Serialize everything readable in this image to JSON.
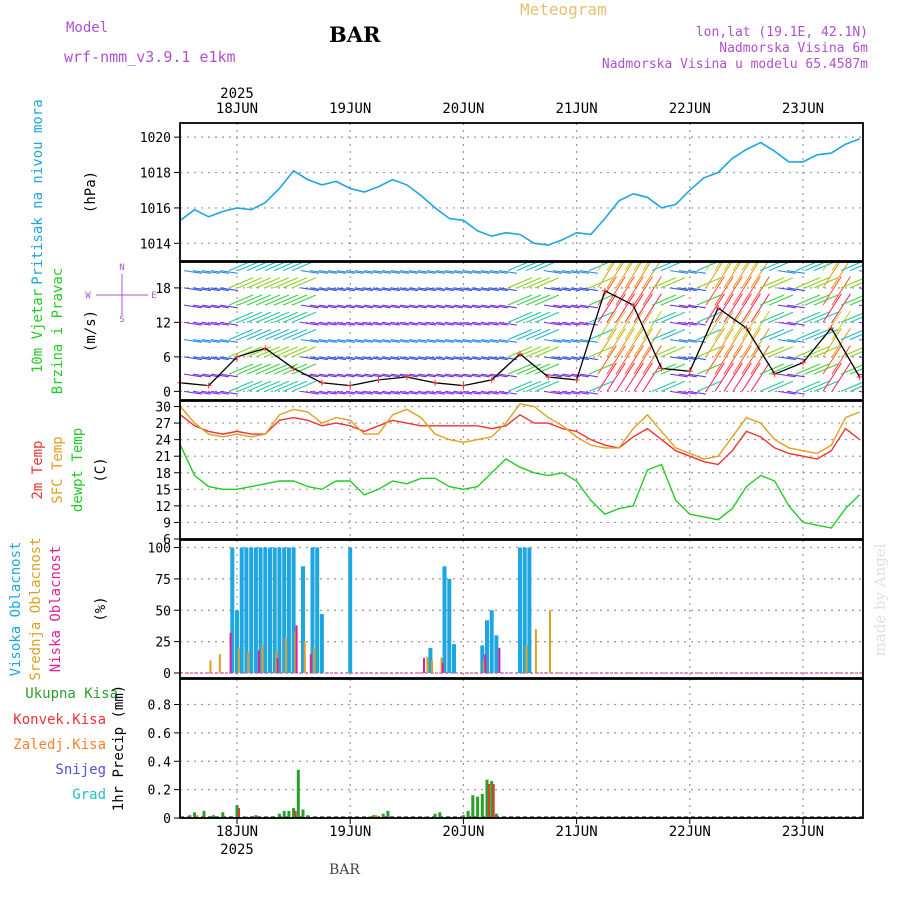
{
  "header": {
    "model_label": "Model",
    "model_name": "wrf-nmm_v3.9.1 e1km",
    "station": "BAR",
    "chart_title": "Meteogram",
    "coords": "lon,lat (19.1E, 42.1N)",
    "elevation": "Nadmorska Visina 6m",
    "model_elevation": "Nadmorska Visina u modelu 65.4587m"
  },
  "footer": {
    "station": "BAR",
    "watermark": "made by Angel"
  },
  "colors": {
    "pressure": "#1ea6e0",
    "wind_label": "#22cc22",
    "t2m": "#ee3333",
    "tsfc": "#e0a020",
    "dewpt": "#22cc22",
    "high_cloud": "#1ea6e0",
    "mid_cloud": "#e0a020",
    "low_cloud": "#e0209a",
    "total_rain": "#2aa02a",
    "conv_rain": "#ee3333",
    "freezing_rain": "#ff8030",
    "snow": "#5050e0",
    "hail": "#20c0c0",
    "header_purple": "#b050d0",
    "title_gold": "#e8c070"
  },
  "time_axis": {
    "labels": [
      "18JUN",
      "19JUN",
      "20JUN",
      "21JUN",
      "22JUN",
      "23JUN"
    ],
    "year": "2025",
    "start": "2025-06-17T12:00",
    "end": "2025-06-23T12:00"
  },
  "chart_data": [
    {
      "type": "line",
      "panel": "pressure",
      "ylabel_title": "Pritisak na nivou mora",
      "ylabel_unit": "(hPa)",
      "ylim": [
        1013,
        1020.8
      ],
      "yticks": [
        "1014",
        "1016",
        "1018",
        "1020"
      ],
      "x": [
        "2025-06-17T12:00",
        "2025-06-17T15:00",
        "2025-06-17T18:00",
        "2025-06-17T21:00",
        "2025-06-18T00:00",
        "2025-06-18T03:00",
        "2025-06-18T06:00",
        "2025-06-18T09:00",
        "2025-06-18T12:00",
        "2025-06-18T15:00",
        "2025-06-18T18:00",
        "2025-06-18T21:00",
        "2025-06-19T00:00",
        "2025-06-19T03:00",
        "2025-06-19T06:00",
        "2025-06-19T09:00",
        "2025-06-19T12:00",
        "2025-06-19T15:00",
        "2025-06-19T18:00",
        "2025-06-19T21:00",
        "2025-06-20T00:00",
        "2025-06-20T03:00",
        "2025-06-20T06:00",
        "2025-06-20T09:00",
        "2025-06-20T12:00",
        "2025-06-20T15:00",
        "2025-06-20T18:00",
        "2025-06-20T21:00",
        "2025-06-21T00:00",
        "2025-06-21T03:00",
        "2025-06-21T06:00",
        "2025-06-21T09:00",
        "2025-06-21T12:00",
        "2025-06-21T15:00",
        "2025-06-21T18:00",
        "2025-06-21T21:00",
        "2025-06-22T00:00",
        "2025-06-22T03:00",
        "2025-06-22T06:00",
        "2025-06-22T09:00",
        "2025-06-22T12:00",
        "2025-06-22T15:00",
        "2025-06-22T18:00",
        "2025-06-22T21:00",
        "2025-06-23T00:00",
        "2025-06-23T03:00",
        "2025-06-23T06:00",
        "2025-06-23T09:00",
        "2025-06-23T12:00"
      ],
      "series": [
        {
          "key": "pressure",
          "values": [
            1015.3,
            1015.9,
            1015.5,
            1015.8,
            1016.0,
            1015.9,
            1016.3,
            1017.1,
            1018.1,
            1017.6,
            1017.3,
            1017.5,
            1017.1,
            1016.9,
            1017.2,
            1017.6,
            1017.3,
            1016.7,
            1016.0,
            1015.4,
            1015.3,
            1014.7,
            1014.4,
            1014.6,
            1014.5,
            1014.0,
            1013.9,
            1014.2,
            1014.6,
            1014.5,
            1015.4,
            1016.4,
            1016.8,
            1016.6,
            1016.0,
            1016.2,
            1017.0,
            1017.7,
            1018.0,
            1018.8,
            1019.3,
            1019.7,
            1019.2,
            1018.6,
            1018.6,
            1019.0,
            1019.1,
            1019.6,
            1019.9
          ]
        }
      ]
    },
    {
      "type": "line",
      "panel": "wind",
      "ylabel_title": "10m Vjetar",
      "ylabel_title2": "Brzina i Pravac",
      "ylabel_unit": "(m/s)",
      "compass": [
        "N",
        "W",
        "E",
        "S"
      ],
      "ylim": [
        -1.5,
        22.5
      ],
      "yticks": [
        "0",
        "6",
        "12",
        "18"
      ],
      "x": [
        "2025-06-17T12:00",
        "2025-06-17T18:00",
        "2025-06-18T00:00",
        "2025-06-18T06:00",
        "2025-06-18T12:00",
        "2025-06-18T18:00",
        "2025-06-19T00:00",
        "2025-06-19T06:00",
        "2025-06-19T12:00",
        "2025-06-19T18:00",
        "2025-06-20T00:00",
        "2025-06-20T06:00",
        "2025-06-20T12:00",
        "2025-06-20T18:00",
        "2025-06-21T00:00",
        "2025-06-21T06:00",
        "2025-06-21T12:00",
        "2025-06-21T18:00",
        "2025-06-22T00:00",
        "2025-06-22T06:00",
        "2025-06-22T12:00",
        "2025-06-22T18:00",
        "2025-06-23T00:00",
        "2025-06-23T06:00",
        "2025-06-23T12:00"
      ],
      "series": [
        {
          "key": "wind_speed",
          "values": [
            1.5,
            1.0,
            6.0,
            7.5,
            4.0,
            1.5,
            1.0,
            2.0,
            2.5,
            1.5,
            1.0,
            2.0,
            6.5,
            2.5,
            2.0,
            17.5,
            15.0,
            4.0,
            3.5,
            14.5,
            11.0,
            3.0,
            5.0,
            11.0,
            2.5
          ]
        }
      ]
    },
    {
      "type": "line",
      "panel": "temperature",
      "ylabel_title": "2m Temp",
      "ylabel_title2": "SFC Temp",
      "ylabel_title3": "dewpt Temp",
      "ylabel_unit": "(C)",
      "ylim": [
        6,
        31
      ],
      "yticks": [
        "6",
        "9",
        "12",
        "15",
        "18",
        "21",
        "24",
        "27",
        "30"
      ],
      "x": [
        "2025-06-17T12:00",
        "2025-06-17T15:00",
        "2025-06-17T18:00",
        "2025-06-17T21:00",
        "2025-06-18T00:00",
        "2025-06-18T03:00",
        "2025-06-18T06:00",
        "2025-06-18T09:00",
        "2025-06-18T12:00",
        "2025-06-18T15:00",
        "2025-06-18T18:00",
        "2025-06-18T21:00",
        "2025-06-19T00:00",
        "2025-06-19T03:00",
        "2025-06-19T06:00",
        "2025-06-19T09:00",
        "2025-06-19T12:00",
        "2025-06-19T15:00",
        "2025-06-19T18:00",
        "2025-06-19T21:00",
        "2025-06-20T00:00",
        "2025-06-20T03:00",
        "2025-06-20T06:00",
        "2025-06-20T09:00",
        "2025-06-20T12:00",
        "2025-06-20T15:00",
        "2025-06-20T18:00",
        "2025-06-20T21:00",
        "2025-06-21T00:00",
        "2025-06-21T03:00",
        "2025-06-21T06:00",
        "2025-06-21T09:00",
        "2025-06-21T12:00",
        "2025-06-21T15:00",
        "2025-06-21T18:00",
        "2025-06-21T21:00",
        "2025-06-22T00:00",
        "2025-06-22T03:00",
        "2025-06-22T06:00",
        "2025-06-22T09:00",
        "2025-06-22T12:00",
        "2025-06-22T15:00",
        "2025-06-22T18:00",
        "2025-06-22T21:00",
        "2025-06-23T00:00",
        "2025-06-23T03:00",
        "2025-06-23T06:00",
        "2025-06-23T09:00",
        "2025-06-23T12:00"
      ],
      "series": [
        {
          "key": "t2m",
          "values": [
            28.5,
            26.5,
            25.5,
            25.0,
            25.5,
            25.0,
            25.0,
            27.5,
            28.0,
            27.5,
            26.5,
            27.0,
            26.5,
            25.5,
            26.5,
            27.5,
            27.0,
            26.5,
            26.5,
            26.5,
            26.5,
            26.5,
            26.0,
            26.5,
            28.5,
            27.0,
            27.0,
            26.0,
            25.5,
            24.0,
            23.0,
            22.5,
            24.5,
            26.0,
            24.0,
            22.0,
            21.0,
            20.0,
            19.5,
            22.0,
            25.5,
            24.5,
            22.5,
            21.5,
            21.0,
            20.5,
            22.0,
            26.0,
            24.0
          ]
        },
        {
          "key": "tsfc",
          "values": [
            30.0,
            27.0,
            25.0,
            24.5,
            25.0,
            24.5,
            25.0,
            28.5,
            29.5,
            29.0,
            27.0,
            28.0,
            27.5,
            25.0,
            25.0,
            28.5,
            29.5,
            28.0,
            25.0,
            24.0,
            23.5,
            24.0,
            24.5,
            27.0,
            30.5,
            30.0,
            28.0,
            26.5,
            24.5,
            23.0,
            22.5,
            22.5,
            26.0,
            28.5,
            25.5,
            22.5,
            21.5,
            20.5,
            21.0,
            24.5,
            28.0,
            27.0,
            24.0,
            22.5,
            22.0,
            21.5,
            23.0,
            28.0,
            29.0
          ]
        },
        {
          "key": "dewpt",
          "values": [
            23.0,
            17.5,
            15.5,
            15.0,
            15.0,
            15.5,
            16.0,
            16.5,
            16.5,
            15.5,
            15.0,
            16.5,
            16.5,
            14.0,
            15.0,
            16.5,
            16.0,
            17.0,
            17.0,
            15.5,
            15.0,
            15.5,
            18.0,
            20.5,
            19.0,
            18.0,
            17.5,
            18.0,
            16.5,
            13.0,
            10.5,
            11.5,
            12.0,
            18.5,
            19.5,
            13.0,
            10.5,
            10.0,
            9.5,
            11.5,
            15.5,
            17.5,
            16.5,
            12.0,
            9.0,
            8.5,
            8.0,
            11.5,
            14.0
          ]
        }
      ]
    },
    {
      "type": "bar",
      "panel": "clouds",
      "ylabel_title": "Visoka Oblacnost",
      "ylabel_title2": "Srednja Oblacnost",
      "ylabel_title3": "Niska Oblacnost",
      "ylabel_unit": "(%)",
      "ylim": [
        -4,
        106
      ],
      "yticks": [
        "0",
        "25",
        "50",
        "75",
        "100"
      ],
      "series": [
        {
          "key": "high",
          "points": [
            [
              "2025-06-17T23:00",
              100
            ],
            [
              "2025-06-18T00:00",
              50
            ],
            [
              "2025-06-18T01:00",
              100
            ],
            [
              "2025-06-18T02:00",
              100
            ],
            [
              "2025-06-18T03:00",
              100
            ],
            [
              "2025-06-18T04:00",
              100
            ],
            [
              "2025-06-18T05:00",
              100
            ],
            [
              "2025-06-18T06:00",
              100
            ],
            [
              "2025-06-18T07:00",
              100
            ],
            [
              "2025-06-18T08:00",
              100
            ],
            [
              "2025-06-18T09:00",
              100
            ],
            [
              "2025-06-18T10:00",
              100
            ],
            [
              "2025-06-18T11:00",
              100
            ],
            [
              "2025-06-18T12:00",
              100
            ],
            [
              "2025-06-18T14:00",
              85
            ],
            [
              "2025-06-18T16:00",
              100
            ],
            [
              "2025-06-18T17:00",
              100
            ],
            [
              "2025-06-18T18:00",
              47
            ],
            [
              "2025-06-19T00:00",
              100
            ],
            [
              "2025-06-19T17:00",
              20
            ],
            [
              "2025-06-19T20:00",
              85
            ],
            [
              "2025-06-19T21:00",
              75
            ],
            [
              "2025-06-19T22:00",
              23
            ],
            [
              "2025-06-20T04:00",
              22
            ],
            [
              "2025-06-20T05:00",
              42
            ],
            [
              "2025-06-20T06:00",
              50
            ],
            [
              "2025-06-20T07:00",
              30
            ],
            [
              "2025-06-20T12:00",
              100
            ],
            [
              "2025-06-20T13:00",
              100
            ],
            [
              "2025-06-20T14:00",
              100
            ]
          ]
        },
        {
          "key": "mid",
          "points": [
            [
              "2025-06-17T19:00",
              10
            ],
            [
              "2025-06-17T21:00",
              15
            ],
            [
              "2025-06-18T01:00",
              20
            ],
            [
              "2025-06-18T03:00",
              17
            ],
            [
              "2025-06-18T06:00",
              22
            ],
            [
              "2025-06-18T09:00",
              18
            ],
            [
              "2025-06-18T11:00",
              28
            ],
            [
              "2025-06-18T13:00",
              33
            ],
            [
              "2025-06-18T15:00",
              25
            ],
            [
              "2025-06-18T17:00",
              20
            ],
            [
              "2025-06-19T17:00",
              13
            ],
            [
              "2025-06-19T18:00",
              10
            ],
            [
              "2025-06-19T20:00",
              12
            ],
            [
              "2025-06-20T05:00",
              10
            ],
            [
              "2025-06-20T14:00",
              22
            ],
            [
              "2025-06-20T16:00",
              35
            ],
            [
              "2025-06-20T19:00",
              50
            ]
          ]
        },
        {
          "key": "low",
          "points": [
            [
              "2025-06-17T22:00",
              32
            ],
            [
              "2025-06-18T04:00",
              18
            ],
            [
              "2025-06-18T08:00",
              12
            ],
            [
              "2025-06-18T12:00",
              38
            ],
            [
              "2025-06-18T15:00",
              15
            ],
            [
              "2025-06-19T15:00",
              12
            ],
            [
              "2025-06-19T19:00",
              8
            ],
            [
              "2025-06-20T04:00",
              15
            ],
            [
              "2025-06-20T07:00",
              20
            ]
          ]
        }
      ]
    },
    {
      "type": "bar",
      "panel": "precip",
      "ylabel_title": "1hr Precip (mm)",
      "legend": [
        "Ukupna Kisa",
        "Konvek.Kisa",
        "Zaledj.Kisa",
        "Snijeg",
        "Grad"
      ],
      "ylim": [
        0,
        0.98
      ],
      "yticks": [
        "0",
        "0.2",
        "0.4",
        "0.6",
        "0.8"
      ],
      "series": [
        {
          "key": "total",
          "points": [
            [
              "2025-06-17T14:00",
              0.02
            ],
            [
              "2025-06-17T15:00",
              0.04
            ],
            [
              "2025-06-17T17:00",
              0.05
            ],
            [
              "2025-06-17T19:00",
              0.02
            ],
            [
              "2025-06-17T21:00",
              0.04
            ],
            [
              "2025-06-18T00:00",
              0.09
            ],
            [
              "2025-06-18T02:00",
              0.01
            ],
            [
              "2025-06-18T04:00",
              0.02
            ],
            [
              "2025-06-18T09:00",
              0.03
            ],
            [
              "2025-06-18T10:00",
              0.05
            ],
            [
              "2025-06-18T11:00",
              0.05
            ],
            [
              "2025-06-18T12:00",
              0.07
            ],
            [
              "2025-06-18T13:00",
              0.34
            ],
            [
              "2025-06-18T14:00",
              0.06
            ],
            [
              "2025-06-18T15:00",
              0.02
            ],
            [
              "2025-06-19T04:00",
              0.01
            ],
            [
              "2025-06-19T05:00",
              0.02
            ],
            [
              "2025-06-19T07:00",
              0.03
            ],
            [
              "2025-06-19T08:00",
              0.05
            ],
            [
              "2025-06-19T16:00",
              0.01
            ],
            [
              "2025-06-19T18:00",
              0.03
            ],
            [
              "2025-06-19T19:00",
              0.04
            ],
            [
              "2025-06-20T00:00",
              0.02
            ],
            [
              "2025-06-20T01:00",
              0.05
            ],
            [
              "2025-06-20T02:00",
              0.16
            ],
            [
              "2025-06-20T03:00",
              0.15
            ],
            [
              "2025-06-20T04:00",
              0.17
            ],
            [
              "2025-06-20T05:00",
              0.27
            ],
            [
              "2025-06-20T06:00",
              0.26
            ],
            [
              "2025-06-20T07:00",
              0.03
            ]
          ]
        },
        {
          "key": "conv",
          "points": [
            [
              "2025-06-18T00:00",
              0.07
            ],
            [
              "2025-06-18T12:00",
              0.05
            ],
            [
              "2025-06-20T05:00",
              0.24
            ],
            [
              "2025-06-20T06:00",
              0.24
            ]
          ]
        },
        {
          "key": "freezing",
          "points": [
            [
              "2025-06-17T16:00",
              0.02
            ],
            [
              "2025-06-19T06:00",
              0.02
            ]
          ]
        }
      ]
    }
  ]
}
